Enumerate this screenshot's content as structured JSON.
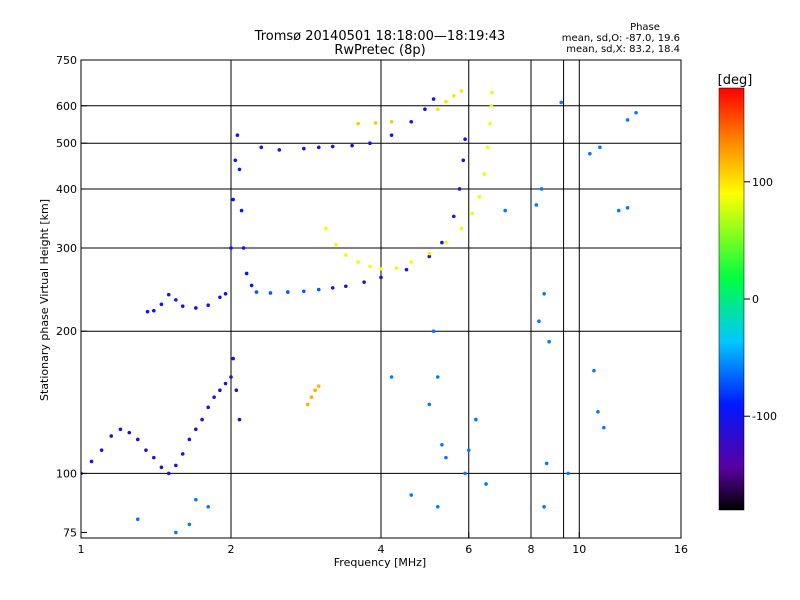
{
  "header": {
    "title_line1": "Tromsø 20140501 18:18:00—18:19:43",
    "title_line2": "RwPretec (8p)"
  },
  "phase_stats": {
    "heading": "Phase",
    "line_o": "mean, sd,O: -87.0, 19.6",
    "line_x": "mean, sd,X: 83.2, 18.4"
  },
  "colorbar": {
    "unit": "[deg]",
    "ticks": [
      {
        "value": 100,
        "label": "100"
      },
      {
        "value": 0,
        "label": "0"
      },
      {
        "value": -100,
        "label": "-100"
      }
    ],
    "range": [
      -180,
      180
    ]
  },
  "chart_data": {
    "type": "scatter",
    "xlabel": "Frequency [MHz]",
    "ylabel": "Stationary phase Virtual Height [km]",
    "xscale": "log",
    "yscale": "log",
    "xlim": [
      1,
      16
    ],
    "ylim": [
      73,
      750
    ],
    "x_ticks": [
      {
        "value": 1,
        "label": "1"
      },
      {
        "value": 2,
        "label": "2"
      },
      {
        "value": 4,
        "label": "4"
      },
      {
        "value": 6,
        "label": "6"
      },
      {
        "value": 8,
        "label": "8"
      },
      {
        "value": 10,
        "label": "10"
      },
      {
        "value": 16,
        "label": "16"
      }
    ],
    "x_gridlines": [
      2,
      4,
      6,
      8,
      9.3,
      10
    ],
    "y_ticks": [
      {
        "value": 75,
        "label": "75"
      },
      {
        "value": 100,
        "label": "100"
      },
      {
        "value": 200,
        "label": "200"
      },
      {
        "value": 300,
        "label": "300"
      },
      {
        "value": 400,
        "label": "400"
      },
      {
        "value": 500,
        "label": "500"
      },
      {
        "value": 600,
        "label": "600"
      },
      {
        "value": 750,
        "label": "750"
      }
    ],
    "grid": true,
    "series": [
      {
        "points": [
          [
            1.36,
            220
          ],
          [
            1.4,
            221
          ],
          [
            1.45,
            228
          ],
          [
            1.5,
            239
          ],
          [
            1.55,
            233
          ],
          [
            1.6,
            226
          ],
          [
            1.7,
            224
          ],
          [
            1.8,
            227
          ],
          [
            1.9,
            236
          ]
        ],
        "phase": -100
      },
      {
        "points": [
          [
            1.95,
            240
          ],
          [
            2.0,
            300
          ],
          [
            2.02,
            380
          ],
          [
            2.04,
            460
          ],
          [
            2.06,
            520
          ],
          [
            2.08,
            440
          ],
          [
            2.1,
            360
          ],
          [
            2.12,
            300
          ],
          [
            2.15,
            265
          ],
          [
            2.2,
            250
          ]
        ],
        "phase": -95
      },
      {
        "points": [
          [
            2.25,
            242
          ],
          [
            2.4,
            241
          ],
          [
            2.6,
            242
          ],
          [
            2.8,
            243
          ],
          [
            3.0,
            245
          ]
        ],
        "phase": -70
      },
      {
        "points": [
          [
            3.2,
            247
          ],
          [
            3.4,
            249
          ],
          [
            3.7,
            254
          ],
          [
            4.0,
            260
          ],
          [
            4.5,
            270
          ],
          [
            5.0,
            288
          ],
          [
            5.3,
            308
          ],
          [
            5.6,
            350
          ],
          [
            5.75,
            400
          ],
          [
            5.85,
            460
          ],
          [
            5.9,
            510
          ]
        ],
        "phase": -110
      },
      {
        "points": [
          [
            2.3,
            490
          ],
          [
            2.5,
            484
          ],
          [
            2.8,
            487
          ],
          [
            3.0,
            490
          ],
          [
            3.2,
            492
          ],
          [
            3.5,
            494
          ],
          [
            3.8,
            500
          ],
          [
            4.2,
            520
          ],
          [
            4.6,
            555
          ],
          [
            4.9,
            590
          ],
          [
            5.1,
            620
          ]
        ],
        "phase": -100
      },
      {
        "points": [
          [
            3.6,
            550
          ],
          [
            3.9,
            552
          ],
          [
            4.2,
            555
          ]
        ],
        "phase": 110
      },
      {
        "points": [
          [
            5.2,
            590
          ],
          [
            5.4,
            612
          ],
          [
            5.6,
            630
          ],
          [
            5.8,
            645
          ]
        ],
        "phase": 100
      },
      {
        "points": [
          [
            3.1,
            330
          ],
          [
            3.25,
            305
          ],
          [
            3.4,
            290
          ],
          [
            3.6,
            280
          ],
          [
            3.8,
            274
          ],
          [
            4.0,
            271
          ],
          [
            4.3,
            272
          ],
          [
            4.6,
            280
          ],
          [
            5.0,
            292
          ],
          [
            5.4,
            308
          ],
          [
            5.8,
            330
          ],
          [
            6.1,
            355
          ],
          [
            6.3,
            385
          ],
          [
            6.45,
            430
          ],
          [
            6.55,
            490
          ],
          [
            6.62,
            550
          ],
          [
            6.66,
            600
          ],
          [
            6.68,
            640
          ]
        ],
        "phase": 85
      },
      {
        "points": [
          [
            1.0,
            100
          ],
          [
            1.05,
            106
          ],
          [
            1.1,
            112
          ],
          [
            1.15,
            120
          ],
          [
            1.2,
            124
          ],
          [
            1.25,
            122
          ],
          [
            1.3,
            118
          ],
          [
            1.35,
            112
          ],
          [
            1.4,
            108
          ],
          [
            1.45,
            103
          ],
          [
            1.5,
            100
          ],
          [
            1.55,
            104
          ],
          [
            1.6,
            110
          ],
          [
            1.65,
            118
          ],
          [
            1.7,
            124
          ],
          [
            1.75,
            130
          ],
          [
            1.8,
            138
          ],
          [
            1.85,
            145
          ],
          [
            1.9,
            150
          ],
          [
            1.95,
            155
          ],
          [
            2.0,
            160
          ],
          [
            2.02,
            175
          ],
          [
            2.05,
            150
          ],
          [
            2.08,
            130
          ]
        ],
        "phase": -110
      },
      {
        "points": [
          [
            2.85,
            140
          ],
          [
            2.9,
            145
          ],
          [
            2.95,
            150
          ],
          [
            3.0,
            153
          ]
        ],
        "phase": 120
      },
      {
        "points": [
          [
            7.1,
            360
          ],
          [
            8.2,
            370
          ],
          [
            8.4,
            400
          ],
          [
            8.5,
            240
          ],
          [
            8.3,
            210
          ],
          [
            8.7,
            190
          ],
          [
            9.2,
            610
          ],
          [
            10.5,
            475
          ],
          [
            11.0,
            490
          ],
          [
            12.5,
            560
          ],
          [
            13.0,
            580
          ],
          [
            10.7,
            165
          ],
          [
            10.9,
            135
          ],
          [
            11.2,
            125
          ],
          [
            12.0,
            360
          ],
          [
            12.5,
            365
          ],
          [
            5.1,
            200
          ],
          [
            5.2,
            160
          ],
          [
            4.2,
            160
          ],
          [
            5.0,
            140
          ],
          [
            5.3,
            115
          ],
          [
            5.4,
            108
          ],
          [
            5.9,
            100
          ],
          [
            6.0,
            112
          ],
          [
            6.5,
            95
          ],
          [
            6.2,
            130
          ],
          [
            4.6,
            90
          ],
          [
            5.2,
            85
          ],
          [
            1.8,
            85
          ],
          [
            1.7,
            88
          ],
          [
            1.65,
            78
          ],
          [
            1.55,
            75
          ],
          [
            1.3,
            80
          ],
          [
            8.6,
            105
          ],
          [
            8.5,
            85
          ],
          [
            9.5,
            100
          ]
        ],
        "phase": -60
      }
    ]
  }
}
